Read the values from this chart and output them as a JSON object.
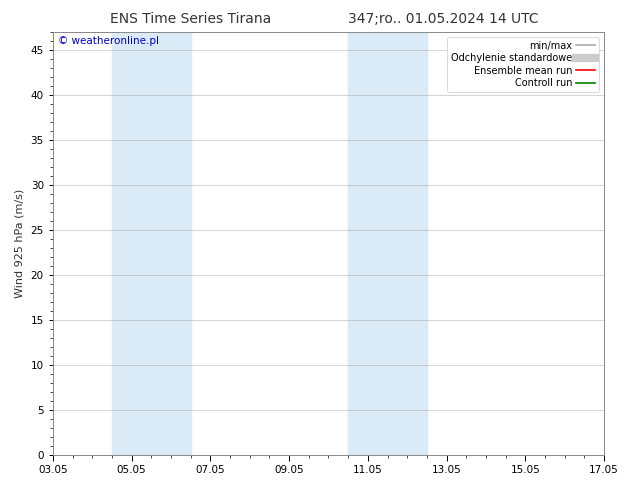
{
  "title_left": "ENS Time Series Tirana",
  "title_right": "347;ro.. 01.05.2024 14 UTC",
  "ylabel": "Wind 925 hPa (m/s)",
  "watermark": "© weatheronline.pl",
  "ylim": [
    0,
    47
  ],
  "yticks": [
    0,
    5,
    10,
    15,
    20,
    25,
    30,
    35,
    40,
    45
  ],
  "xtick_labels": [
    "03.05",
    "05.05",
    "07.05",
    "09.05",
    "11.05",
    "13.05",
    "15.05",
    "17.05"
  ],
  "xtick_positions": [
    0,
    2,
    4,
    6,
    8,
    10,
    12,
    14
  ],
  "xlim": [
    0,
    14
  ],
  "shaded_bands": [
    {
      "x_start": 1.5,
      "x_end": 3.5
    },
    {
      "x_start": 7.5,
      "x_end": 9.5
    }
  ],
  "legend_entries": [
    {
      "label": "min/max",
      "color": "#aaaaaa",
      "linewidth": 1.2
    },
    {
      "label": "Odchylenie standardowe",
      "color": "#cccccc",
      "linewidth": 6
    },
    {
      "label": "Ensemble mean run",
      "color": "red",
      "linewidth": 1.2
    },
    {
      "label": "Controll run",
      "color": "green",
      "linewidth": 1.2
    }
  ],
  "bg_color": "#ffffff",
  "plot_bg_color": "#ffffff",
  "title_fontsize": 10,
  "tick_fontsize": 7.5,
  "ylabel_fontsize": 8,
  "watermark_color": "#0000cc",
  "watermark_fontsize": 7.5,
  "grid_color": "#aaaaaa",
  "grid_alpha": 0.7,
  "grid_linewidth": 0.5,
  "shaded_color": "#daeaf7",
  "spine_color": "#888888"
}
